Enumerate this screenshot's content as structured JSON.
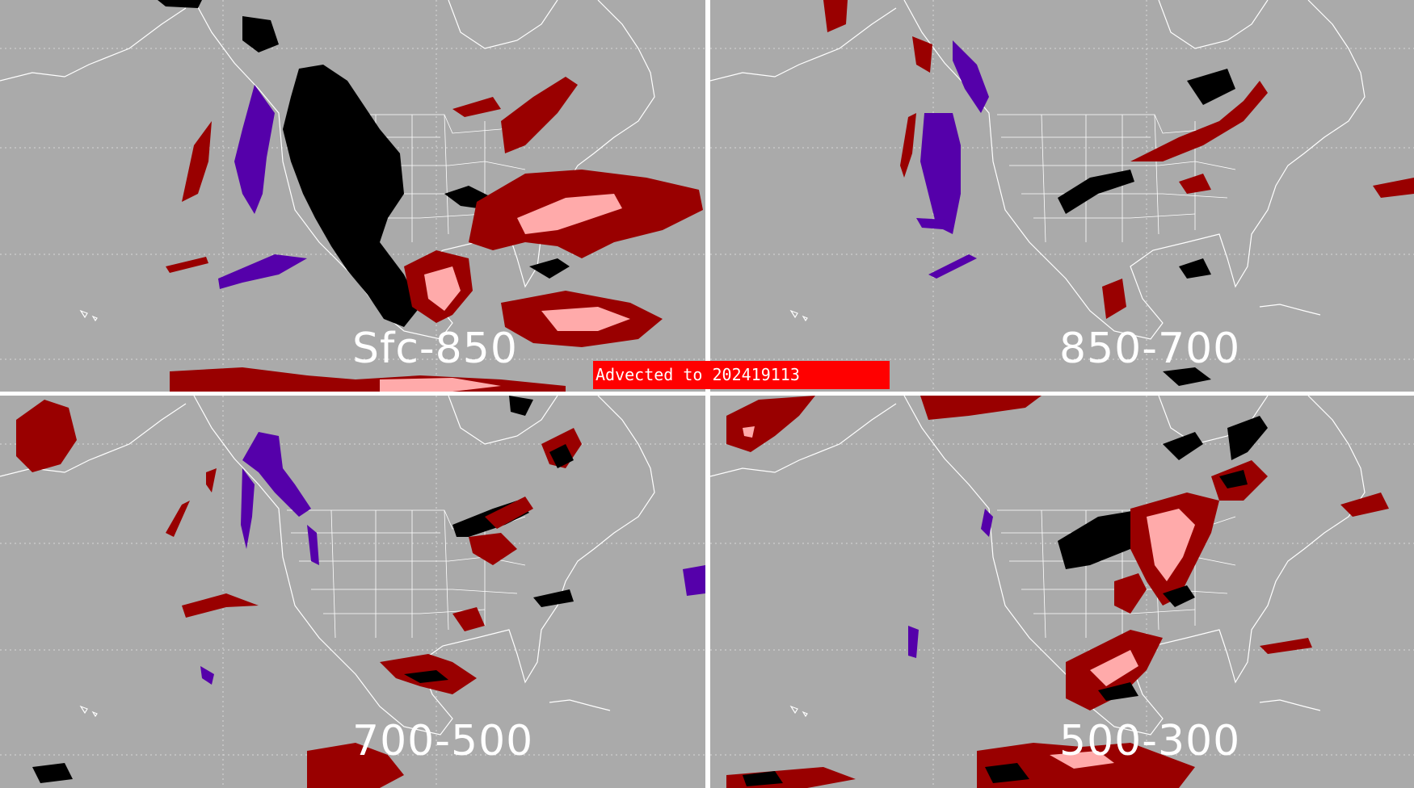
{
  "panels": [
    {
      "label": "Sfc-850"
    },
    {
      "label": "850-700"
    },
    {
      "label": "700-500"
    },
    {
      "label": "500-300"
    }
  ],
  "banner": {
    "text": "Advected to  202419113"
  },
  "colors": {
    "background": "#aaaaaa",
    "coastline": "#ffffff",
    "dark_red": "#990000",
    "pink": "#ffaaaa",
    "black": "#000000",
    "purple": "#5500aa",
    "banner": "#ff0000"
  }
}
